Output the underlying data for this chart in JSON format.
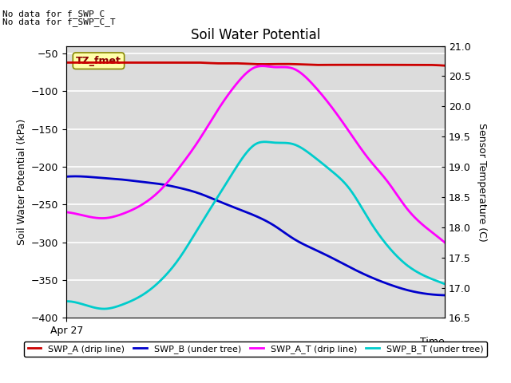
{
  "title": "Soil Water Potential",
  "ylabel_left": "Soil Water Potential (kPa)",
  "ylabel_right": "Sensor Temperature (C)",
  "xlabel": "Time",
  "annotation_line1": "No data for f_SWP_C",
  "annotation_line2": "No data for f_SWP_C_T",
  "box_label": "TZ_fmet",
  "ylim_left": [
    -400,
    -40
  ],
  "ylim_right": [
    16.5,
    21.0
  ],
  "yticks_left": [
    -400,
    -350,
    -300,
    -250,
    -200,
    -150,
    -100,
    -50
  ],
  "yticks_right": [
    16.5,
    17.0,
    17.5,
    18.0,
    18.5,
    19.0,
    19.5,
    20.0,
    20.5,
    21.0
  ],
  "xtick_label": "Apr 27",
  "plot_bg_color": "#dcdcdc",
  "grid_color": "white",
  "swp_a_color": "#cc0000",
  "swp_b_color": "#0000cc",
  "swp_a_t_color": "#ff00ff",
  "swp_b_t_color": "#00cccc",
  "legend_labels": [
    "SWP_A (drip line)",
    "SWP_B (under tree)",
    "SWP_A_T (drip line)",
    "SWP_B_T (under tree)"
  ],
  "swp_a_y": [
    -62,
    -62,
    -62,
    -62,
    -62,
    -62,
    -62,
    -62,
    -63,
    -63,
    -64,
    -64,
    -64,
    -65,
    -65,
    -65,
    -65,
    -65,
    -65,
    -65,
    -66
  ],
  "swp_b_y": [
    -213,
    -213,
    -215,
    -217,
    -220,
    -223,
    -228,
    -235,
    -245,
    -255,
    -265,
    -278,
    -295,
    -308,
    -320,
    -333,
    -345,
    -355,
    -363,
    -368,
    -370
  ],
  "swp_a_t_y": [
    -260,
    -265,
    -268,
    -262,
    -250,
    -230,
    -200,
    -165,
    -125,
    -90,
    -68,
    -68,
    -70,
    -90,
    -120,
    -155,
    -190,
    -220,
    -255,
    -280,
    -300
  ],
  "swp_b_t_y": [
    -378,
    -383,
    -388,
    -382,
    -370,
    -350,
    -320,
    -280,
    -240,
    -200,
    -170,
    -168,
    -170,
    -185,
    -205,
    -230,
    -270,
    -305,
    -330,
    -345,
    -355
  ]
}
